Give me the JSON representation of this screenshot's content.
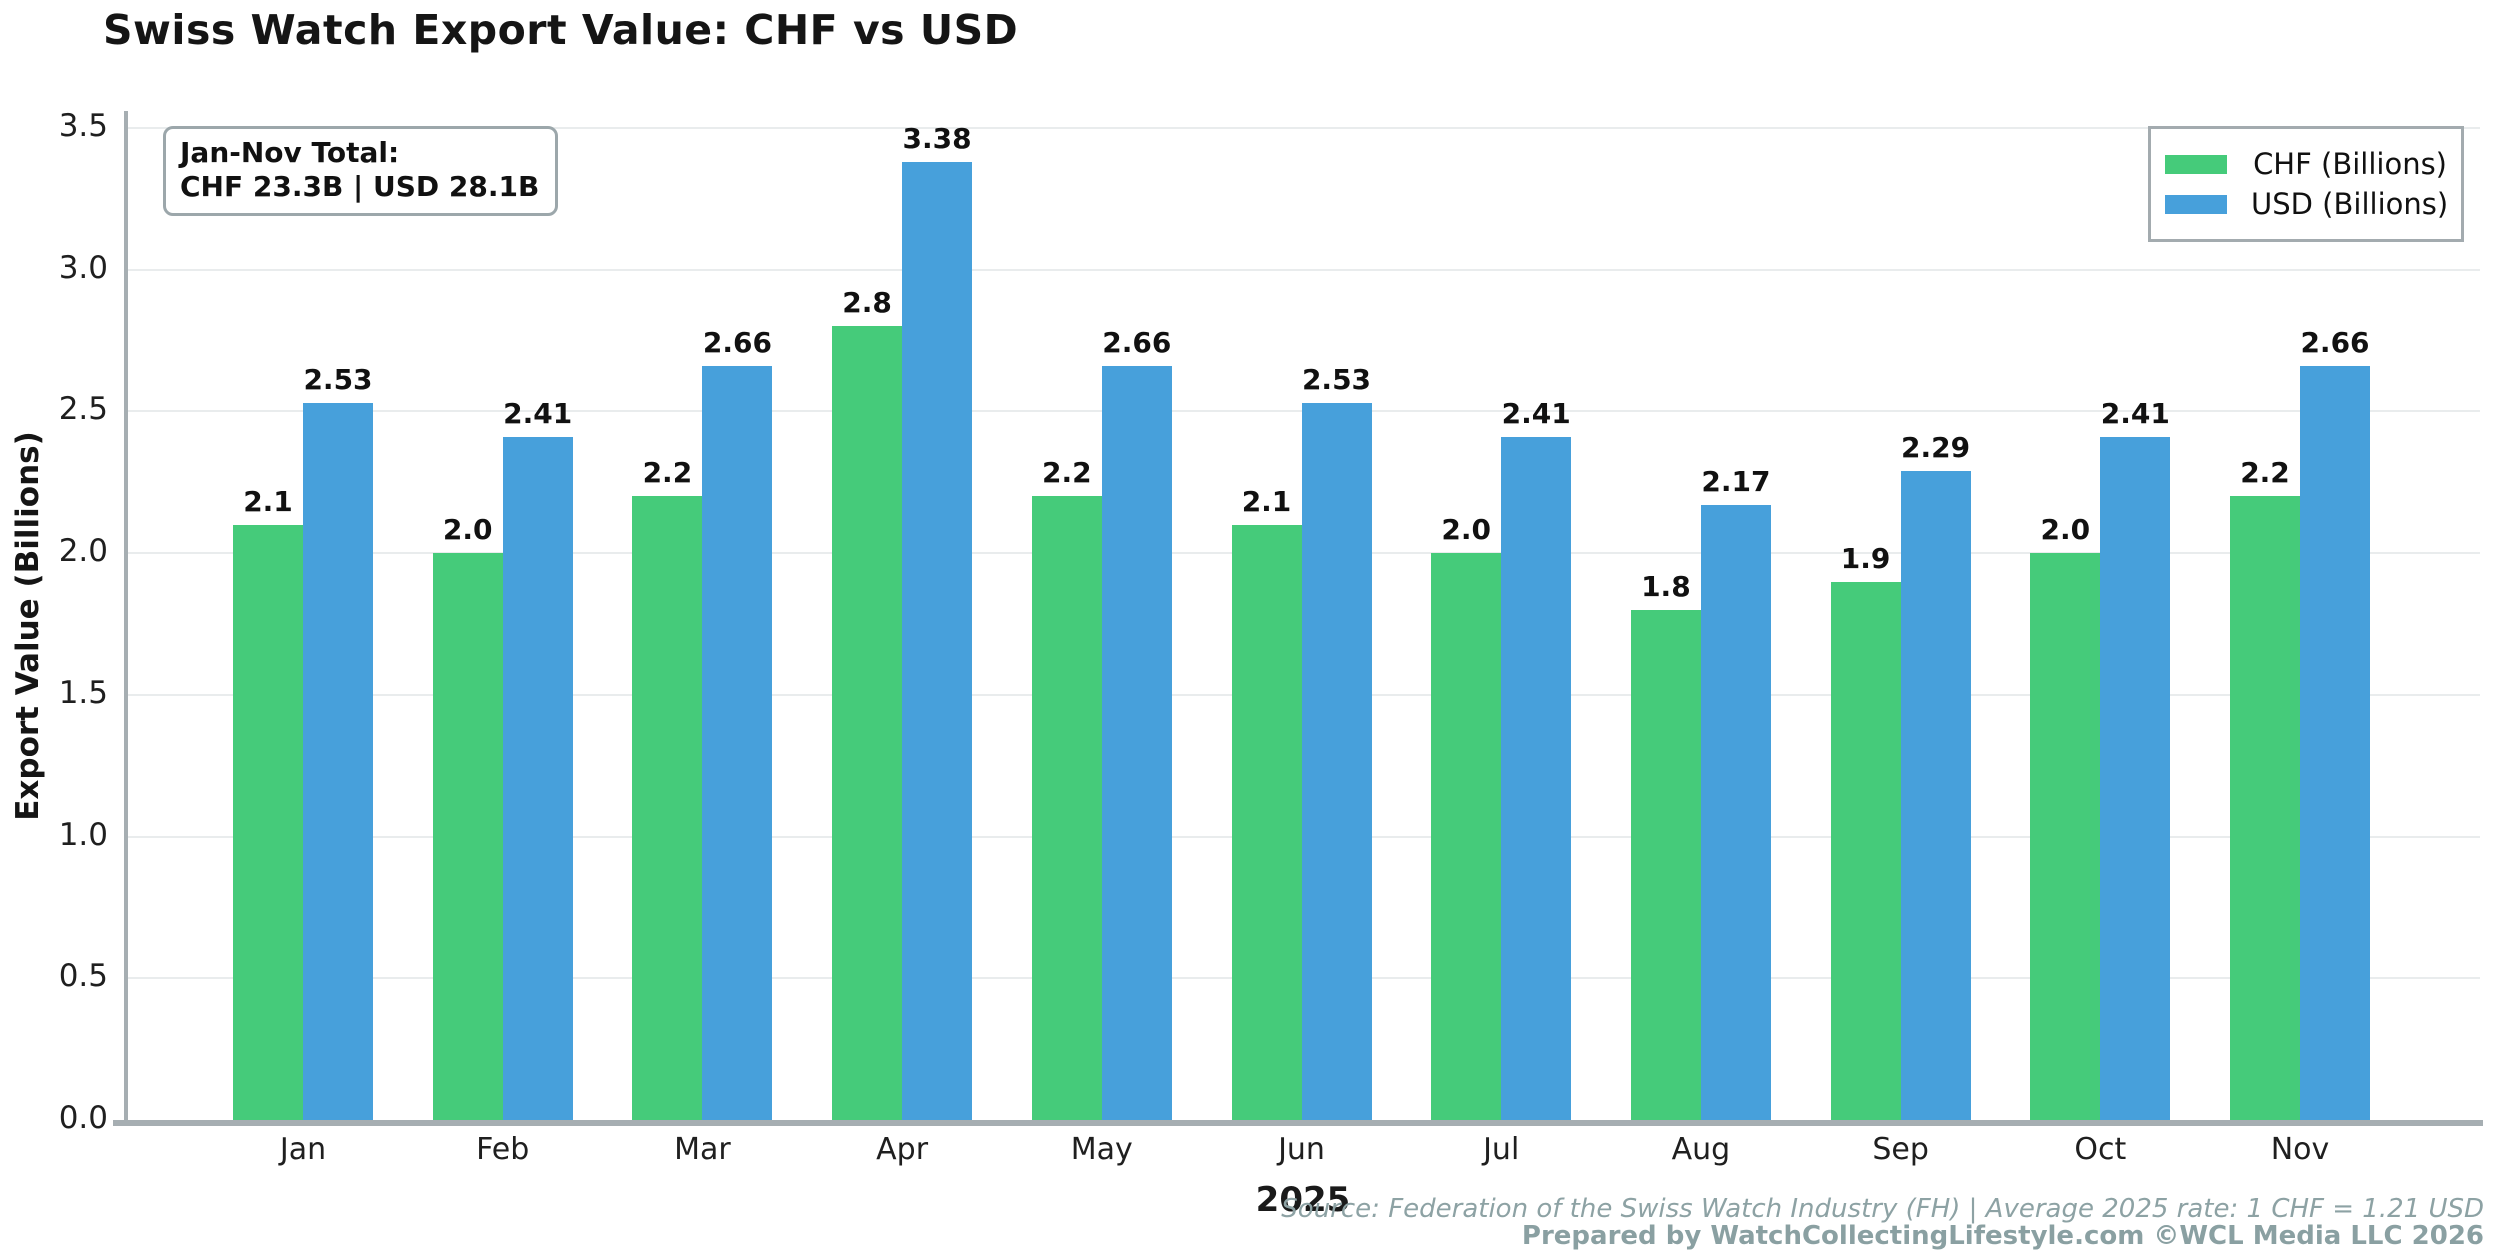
{
  "title": "Swiss Watch Export Value: CHF vs USD",
  "y_axis_label": "Export Value (Billions)",
  "x_axis_label": "2025",
  "annotation": {
    "line1": "Jan-Nov Total:",
    "line2": "CHF 23.3B | USD 28.1B"
  },
  "footer": {
    "source": "Source: Federation of the Swiss Watch Industry (FH) | Average 2025 rate: 1 CHF = 1.21 USD",
    "credit": "Prepared by WatchCollectingLifestyle.com ©WCL Media LLC 2026"
  },
  "colors": {
    "chf": "#45cb7a",
    "usd": "#47a0db",
    "grid": "#e9eced",
    "axis": "#a6aeb2",
    "footer_text": "#8da2a4"
  },
  "chart_data": {
    "type": "bar",
    "title": "Swiss Watch Export Value: CHF vs USD",
    "xlabel": "2025",
    "ylabel": "Export Value (Billions)",
    "categories": [
      "Jan",
      "Feb",
      "Mar",
      "Apr",
      "May",
      "Jun",
      "Jul",
      "Aug",
      "Sep",
      "Oct",
      "Nov"
    ],
    "series": [
      {
        "name": "CHF (Billions)",
        "color": "#45cb7a",
        "decimals": 1,
        "values": [
          2.1,
          2.0,
          2.2,
          2.8,
          2.2,
          2.1,
          2.0,
          1.8,
          1.9,
          2.0,
          2.2
        ]
      },
      {
        "name": "USD (Billions)",
        "color": "#47a0db",
        "decimals": 2,
        "values": [
          2.53,
          2.41,
          2.66,
          3.38,
          2.66,
          2.53,
          2.41,
          2.17,
          2.29,
          2.41,
          2.66
        ]
      }
    ],
    "ylim": [
      0.0,
      3.5
    ],
    "ytick_step": 0.5,
    "grid": "horizontal",
    "legend_position": "top-right",
    "legend_entries": [
      "CHF (Billions)",
      "USD (Billions)"
    ]
  }
}
